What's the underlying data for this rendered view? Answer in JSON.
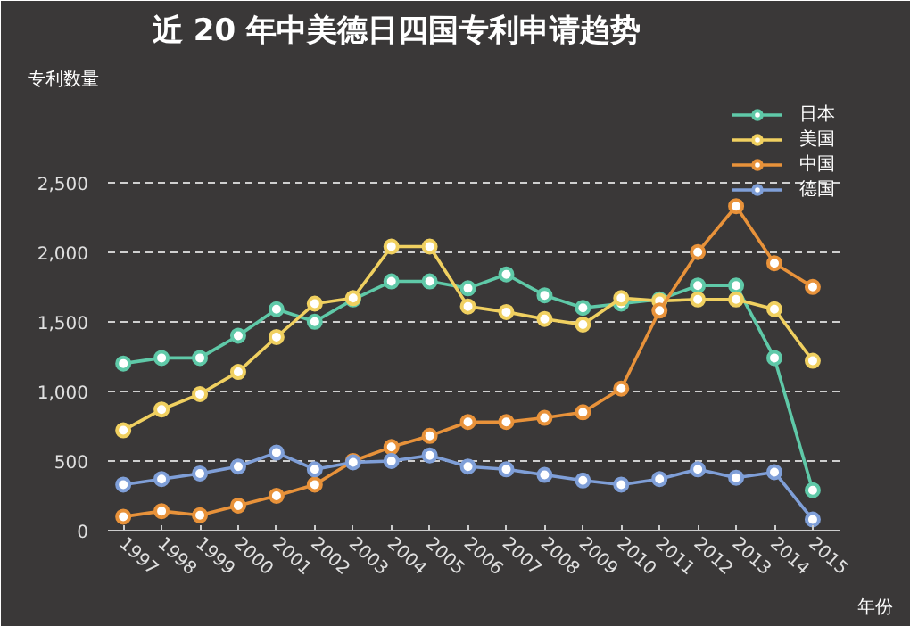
{
  "chart_data": {
    "type": "line",
    "title": "近 20 年中美德日四国专利申请趋势",
    "xlabel": "年份",
    "ylabel": "专利数量",
    "x": [
      1997,
      1998,
      1999,
      2000,
      2001,
      2002,
      2003,
      2004,
      2005,
      2006,
      2007,
      2008,
      2009,
      2010,
      2011,
      2012,
      2013,
      2014,
      2015
    ],
    "xlim": [
      1996.6,
      2015.7
    ],
    "xticks": [
      1997,
      1998,
      1999,
      2000,
      2001,
      2002,
      2003,
      2004,
      2005,
      2006,
      2007,
      2008,
      2009,
      2010,
      2011,
      2012,
      2013,
      2014,
      2015
    ],
    "ylim": [
      0,
      3100
    ],
    "yticks": [
      0,
      500,
      {
        "value": 1000,
        "label": "1,000"
      },
      {
        "value": 1500,
        "label": "1,500"
      },
      {
        "value": 2000,
        "label": "2,000"
      },
      {
        "value": 2500,
        "label": "2,500"
      }
    ],
    "grid": "y",
    "legend": "top right",
    "marker": "circle",
    "line_style": "solid",
    "series": [
      {
        "name": "日本",
        "color": "#5fc9a8",
        "values": [
          1200,
          1240,
          1240,
          1400,
          1590,
          1500,
          1660,
          1790,
          1790,
          1740,
          1840,
          1690,
          1600,
          1630,
          1660,
          1760,
          1760,
          1240,
          290
        ]
      },
      {
        "name": "美国",
        "color": "#f0d060",
        "values": [
          720,
          870,
          980,
          1140,
          1390,
          1630,
          1670,
          2040,
          2040,
          1610,
          1570,
          1520,
          1480,
          1670,
          1650,
          1660,
          1660,
          1590,
          1220
        ]
      },
      {
        "name": "中国",
        "color": "#e8923a",
        "values": [
          100,
          140,
          110,
          180,
          250,
          330,
          500,
          600,
          680,
          780,
          780,
          810,
          850,
          1020,
          1580,
          2000,
          2330,
          1920,
          1750
        ]
      },
      {
        "name": "德国",
        "color": "#7f9fd8",
        "values": [
          330,
          370,
          410,
          460,
          560,
          440,
          490,
          500,
          540,
          460,
          440,
          400,
          360,
          330,
          370,
          440,
          380,
          420,
          80
        ]
      }
    ]
  }
}
